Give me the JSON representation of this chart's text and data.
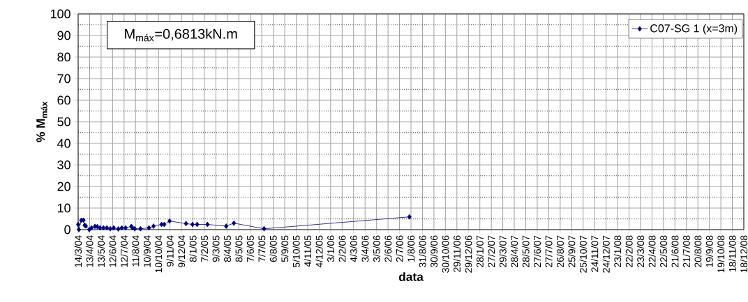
{
  "chart_data": {
    "type": "line",
    "xlabel": "data",
    "ylabel": "% M$_{máx}$",
    "annotations": [
      "M$_{máx}$=0,6813kN.m"
    ],
    "x": [
      "2004-03-14",
      "2004-03-16",
      "2004-03-22",
      "2004-03-28",
      "2004-03-31",
      "2004-04-03",
      "2004-04-12",
      "2004-04-18",
      "2004-04-27",
      "2004-05-03",
      "2004-05-10",
      "2004-05-19",
      "2004-05-28",
      "2004-06-06",
      "2004-06-15",
      "2004-06-27",
      "2004-07-06",
      "2004-07-16",
      "2004-07-31",
      "2004-08-03",
      "2004-08-09",
      "2004-08-24",
      "2004-09-15",
      "2004-09-27",
      "2004-10-18",
      "2004-10-25",
      "2004-11-08",
      "2004-12-21",
      "2005-01-07",
      "2005-01-19",
      "2005-02-15",
      "2005-04-05",
      "2005-04-25",
      "2005-07-13",
      "2006-07-28"
    ],
    "series": [
      {
        "name": "C07-SG 1 (x=3m)",
        "color": "#000080",
        "values": [
          2.4,
          0,
          4.3,
          4.4,
          2.0,
          1.7,
          0,
          0.8,
          1.5,
          1.4,
          0.8,
          0.8,
          0.8,
          0.4,
          0.8,
          0.3,
          0.8,
          0.8,
          1.5,
          0.8,
          0.4,
          0.4,
          0.8,
          1.6,
          2.4,
          2.4,
          4.0,
          2.8,
          2.4,
          2.4,
          2.4,
          1.6,
          3.0,
          0.4,
          5.9
        ]
      }
    ],
    "xlim": [
      "2004-03-14",
      "2008-12-18"
    ],
    "xticks": [
      {
        "value": "2004-03-14",
        "label": "14/3/04"
      },
      {
        "value": "2004-04-13",
        "label": "13/4/04"
      },
      {
        "value": "2004-05-13",
        "label": "13/5/04"
      },
      {
        "value": "2004-06-12",
        "label": "12/6/04"
      },
      {
        "value": "2004-07-12",
        "label": "12/7/04"
      },
      {
        "value": "2004-08-11",
        "label": "11/8/04"
      },
      {
        "value": "2004-09-10",
        "label": "10/9/04"
      },
      {
        "value": "2004-10-10",
        "label": "10/10/04"
      },
      {
        "value": "2004-11-09",
        "label": "9/11/04"
      },
      {
        "value": "2004-12-09",
        "label": "9/12/04"
      },
      {
        "value": "2005-01-08",
        "label": "8/1/05"
      },
      {
        "value": "2005-02-07",
        "label": "7/2/05"
      },
      {
        "value": "2005-03-09",
        "label": "9/3/05"
      },
      {
        "value": "2005-04-08",
        "label": "8/4/05"
      },
      {
        "value": "2005-05-08",
        "label": "8/5/05"
      },
      {
        "value": "2005-06-07",
        "label": "7/6/05"
      },
      {
        "value": "2005-07-07",
        "label": "7/7/05"
      },
      {
        "value": "2005-08-06",
        "label": "6/8/05"
      },
      {
        "value": "2005-09-05",
        "label": "5/9/05"
      },
      {
        "value": "2005-10-05",
        "label": "5/10/05"
      },
      {
        "value": "2005-11-04",
        "label": "4/11/05"
      },
      {
        "value": "2005-12-04",
        "label": "4/12/05"
      },
      {
        "value": "2006-01-03",
        "label": "3/1/06"
      },
      {
        "value": "2006-02-02",
        "label": "2/2/06"
      },
      {
        "value": "2006-03-04",
        "label": "4/3/06"
      },
      {
        "value": "2006-04-03",
        "label": "3/4/06"
      },
      {
        "value": "2006-05-03",
        "label": "3/5/06"
      },
      {
        "value": "2006-06-02",
        "label": "2/6/06"
      },
      {
        "value": "2006-07-02",
        "label": "2/7/06"
      },
      {
        "value": "2006-08-01",
        "label": "1/8/06"
      },
      {
        "value": "2006-08-31",
        "label": "31/8/06"
      },
      {
        "value": "2006-09-30",
        "label": "30/9/06"
      },
      {
        "value": "2006-10-30",
        "label": "30/10/06"
      },
      {
        "value": "2006-11-29",
        "label": "29/11/06"
      },
      {
        "value": "2006-12-29",
        "label": "29/12/06"
      },
      {
        "value": "2007-01-28",
        "label": "28/1/07"
      },
      {
        "value": "2007-02-27",
        "label": "27/2/07"
      },
      {
        "value": "2007-03-29",
        "label": "29/3/07"
      },
      {
        "value": "2007-04-28",
        "label": "28/4/07"
      },
      {
        "value": "2007-05-28",
        "label": "28/5/07"
      },
      {
        "value": "2007-06-27",
        "label": "27/6/07"
      },
      {
        "value": "2007-07-27",
        "label": "27/7/07"
      },
      {
        "value": "2007-08-26",
        "label": "26/8/07"
      },
      {
        "value": "2007-09-25",
        "label": "25/9/07"
      },
      {
        "value": "2007-10-25",
        "label": "25/10/07"
      },
      {
        "value": "2007-11-24",
        "label": "24/11/07"
      },
      {
        "value": "2007-12-24",
        "label": "24/12/07"
      },
      {
        "value": "2008-01-23",
        "label": "23/1/08"
      },
      {
        "value": "2008-02-22",
        "label": "22/2/08"
      },
      {
        "value": "2008-03-23",
        "label": "23/3/08"
      },
      {
        "value": "2008-04-22",
        "label": "22/4/08"
      },
      {
        "value": "2008-05-22",
        "label": "22/5/08"
      },
      {
        "value": "2008-06-21",
        "label": "21/6/08"
      },
      {
        "value": "2008-07-21",
        "label": "21/7/08"
      },
      {
        "value": "2008-08-20",
        "label": "20/8/08"
      },
      {
        "value": "2008-09-19",
        "label": "19/9/08"
      },
      {
        "value": "2008-10-19",
        "label": "19/10/08"
      },
      {
        "value": "2008-11-18",
        "label": "18/11/08"
      },
      {
        "value": "2008-12-18",
        "label": "18/12/08"
      }
    ],
    "ylim": [
      0,
      100
    ],
    "yticks": [
      0,
      10,
      20,
      30,
      40,
      50,
      60,
      70,
      80,
      90,
      100
    ],
    "grid": true,
    "legend": "top right",
    "marker": "diamond",
    "line_style": "solid"
  }
}
